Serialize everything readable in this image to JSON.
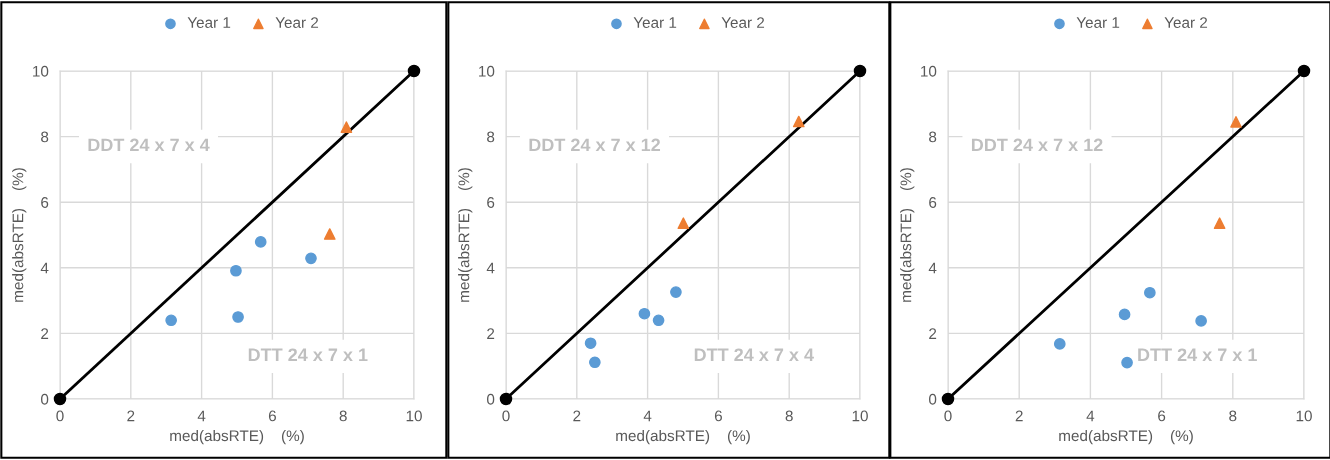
{
  "chart_data": [
    {
      "type": "scatter",
      "xlabel": "med(absRTE)    (%)",
      "ylabel": "med(absRTE)    (%)",
      "xlim": [
        0,
        10
      ],
      "ylim": [
        0,
        10
      ],
      "xticks": [
        0,
        2,
        4,
        6,
        8,
        10
      ],
      "yticks": [
        0,
        2,
        4,
        6,
        8,
        10
      ],
      "grid": true,
      "legend": "top",
      "annotations": [
        "DDT 24 x 7 x 4",
        "DTT 24 x 7 x 1"
      ],
      "series": [
        {
          "name": "Year 1",
          "color": "#5b9bd5",
          "marker": "circle",
          "x": [
            3.14,
            4.97,
            5.03,
            5.67,
            7.09
          ],
          "values": [
            2.4,
            3.91,
            2.5,
            4.79,
            4.29
          ]
        },
        {
          "name": "Year 2",
          "color": "#ed7d31",
          "marker": "triangle",
          "x": [
            8.09,
            7.62
          ],
          "values": [
            8.29,
            5.03
          ]
        },
        {
          "type": "line",
          "color": "#000000",
          "marker": "circle",
          "x": [
            0,
            10
          ],
          "values": [
            0,
            10
          ]
        }
      ]
    },
    {
      "type": "scatter",
      "xlabel": "med(absRTE)    (%)",
      "ylabel": "med(absRTE)    (%)",
      "xlim": [
        0,
        10
      ],
      "ylim": [
        0,
        10
      ],
      "xticks": [
        0,
        2,
        4,
        6,
        8,
        10
      ],
      "yticks": [
        0,
        2,
        4,
        6,
        8,
        10
      ],
      "grid": true,
      "legend": "top",
      "annotations": [
        "DDT 24 x 7 x 12",
        "DTT 24 x 7 x 4"
      ],
      "series": [
        {
          "name": "Year 1",
          "color": "#5b9bd5",
          "marker": "circle",
          "x": [
            2.39,
            2.51,
            3.91,
            4.31,
            4.8
          ],
          "values": [
            1.7,
            1.12,
            2.6,
            2.4,
            3.26
          ]
        },
        {
          "name": "Year 2",
          "color": "#ed7d31",
          "marker": "triangle",
          "x": [
            5.01,
            8.27
          ],
          "values": [
            5.36,
            8.46
          ]
        },
        {
          "type": "line",
          "color": "#000000",
          "marker": "circle",
          "x": [
            0,
            10
          ],
          "values": [
            0,
            10
          ]
        }
      ]
    },
    {
      "type": "scatter",
      "xlabel": "med(absRTE)    (%)",
      "ylabel": "med(absRTE)    (%)",
      "xlim": [
        0,
        10
      ],
      "ylim": [
        0,
        10
      ],
      "xticks": [
        0,
        2,
        4,
        6,
        8,
        10
      ],
      "yticks": [
        0,
        2,
        4,
        6,
        8,
        10
      ],
      "grid": true,
      "legend": "top",
      "annotations": [
        "DDT 24 x 7 x 12",
        "DTT 24 x 7 x 1"
      ],
      "series": [
        {
          "name": "Year 1",
          "color": "#5b9bd5",
          "marker": "circle",
          "x": [
            3.14,
            4.96,
            5.03,
            5.67,
            7.11
          ],
          "values": [
            1.68,
            2.58,
            1.11,
            3.24,
            2.38
          ]
        },
        {
          "name": "Year 2",
          "color": "#ed7d31",
          "marker": "triangle",
          "x": [
            8.09,
            7.63
          ],
          "values": [
            8.45,
            5.36
          ]
        },
        {
          "type": "line",
          "color": "#000000",
          "marker": "circle",
          "x": [
            0,
            10
          ],
          "values": [
            0,
            10
          ]
        }
      ]
    }
  ]
}
